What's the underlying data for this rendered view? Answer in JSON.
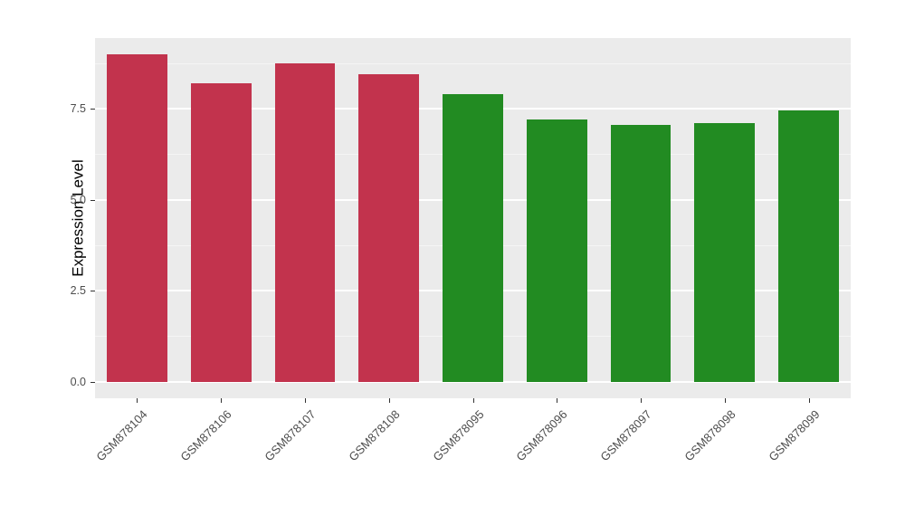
{
  "chart_data": {
    "type": "bar",
    "categories": [
      "GSM878104",
      "GSM878106",
      "GSM878107",
      "GSM878108",
      "GSM878095",
      "GSM878096",
      "GSM878097",
      "GSM878098",
      "GSM878099"
    ],
    "values": [
      9.0,
      8.2,
      8.75,
      8.45,
      7.9,
      7.2,
      7.05,
      7.1,
      7.45
    ],
    "bar_colors": [
      "#C2334D",
      "#C2334D",
      "#C2334D",
      "#C2334D",
      "#228B22",
      "#228B22",
      "#228B22",
      "#228B22",
      "#228B22"
    ],
    "title": "",
    "xlabel": "",
    "ylabel": "Expression Level",
    "ylim": [
      -0.45,
      9.45
    ],
    "yticks": [
      0.0,
      2.5,
      5.0,
      7.5
    ],
    "ytick_labels": [
      "0.0",
      "2.5",
      "5.0",
      "7.5"
    ],
    "minor_ticks": [
      1.25,
      3.75,
      6.25,
      8.75
    ],
    "grid": "on",
    "legend_position": "none",
    "panel_background": "#EBEBEB",
    "gridline_color": "#FFFFFF"
  }
}
